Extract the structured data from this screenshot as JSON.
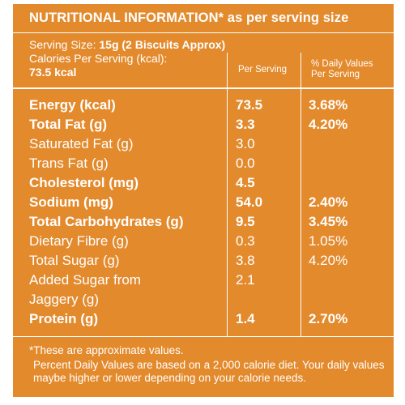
{
  "header": {
    "title": "NUTRITIONAL INFORMATION*",
    "title_suffix": " as per serving size"
  },
  "serving": {
    "label": "Serving Size: ",
    "value": "15g (2 Biscuits Approx)",
    "calories_label": "Calories Per Serving (kcal):",
    "calories_value": "73.5 kcal"
  },
  "columns": {
    "per_serving": "Per Serving",
    "daily_values": "% Daily Values Per Serving"
  },
  "nutrients": [
    {
      "name": "Energy (kcal)",
      "value": "73.5",
      "dv": "3.68%",
      "bold": true
    },
    {
      "name": "Total Fat (g)",
      "value": "3.3",
      "dv": "4.20%",
      "bold": true
    },
    {
      "name": "Saturated Fat (g)",
      "value": "3.0",
      "dv": "",
      "bold": false
    },
    {
      "name": "Trans Fat (g)",
      "value": "0.0",
      "dv": "",
      "bold": false
    },
    {
      "name": "Cholesterol (mg)",
      "value": "4.5",
      "dv": "",
      "bold": true
    },
    {
      "name": "Sodium (mg)",
      "value": "54.0",
      "dv": "2.40%",
      "bold": true
    },
    {
      "name": "Total Carbohydrates (g)",
      "value": "9.5",
      "dv": "3.45%",
      "bold": true
    },
    {
      "name": "Dietary Fibre (g)",
      "value": "0.3",
      "dv": "1.05%",
      "bold": false
    },
    {
      "name": "Total Sugar (g)",
      "value": "3.8",
      "dv": "4.20%",
      "bold": false
    },
    {
      "name": "Added Sugar from",
      "value": "2.1",
      "dv": "",
      "bold": false
    },
    {
      "name": "Jaggery (g)",
      "value": "",
      "dv": "",
      "bold": false
    },
    {
      "name": "Protein (g)",
      "value": "1.4",
      "dv": "2.70%",
      "bold": true
    }
  ],
  "footer": {
    "note": "*These are approximate values.",
    "disclaimer": "Percent Daily Values are based on a 2,000 calorie diet. Your daily values maybe higher or lower depending on your calorie needs."
  },
  "colors": {
    "background": "#e38a2d",
    "text": "#ffffff"
  }
}
